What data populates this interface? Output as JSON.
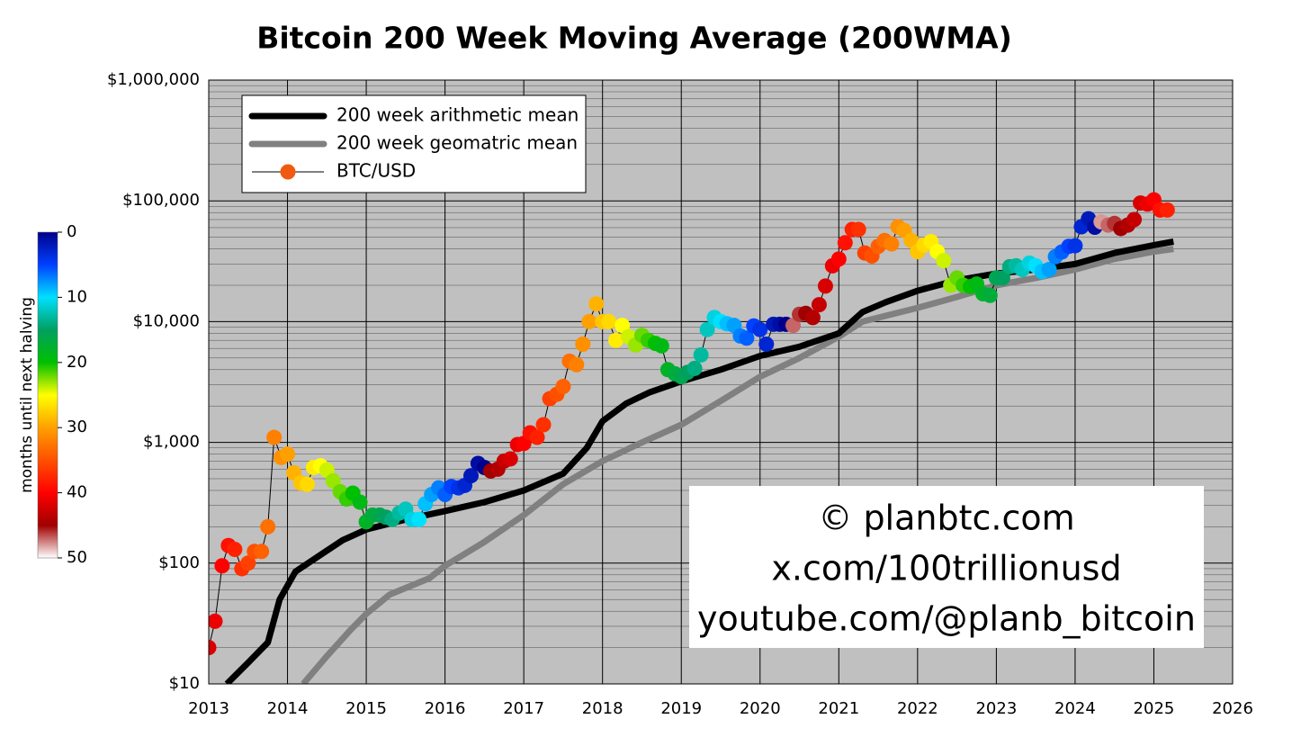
{
  "chart_data": {
    "type": "line",
    "title": "Bitcoin 200 Week Moving Average (200WMA)",
    "log_y": true,
    "grid": true,
    "legend": "upper left",
    "xlim": [
      2013,
      2026
    ],
    "xticks": [
      2013,
      2014,
      2015,
      2016,
      2017,
      2018,
      2019,
      2020,
      2021,
      2022,
      2023,
      2024,
      2025,
      2026
    ],
    "ylim": [
      10,
      1000000
    ],
    "yticks": [
      {
        "value": 10,
        "label": "$10"
      },
      {
        "value": 100,
        "label": "$100"
      },
      {
        "value": 1000,
        "label": "$1,000"
      },
      {
        "value": 10000,
        "label": "$10,000"
      },
      {
        "value": 100000,
        "label": "$100,000"
      },
      {
        "value": 1000000,
        "label": "$1,000,000"
      }
    ],
    "series": [
      {
        "name": "200 week arithmetic mean",
        "color": "#000000",
        "x": [
          2013.23,
          2013.5,
          2013.75,
          2013.9,
          2014.1,
          2014.4,
          2014.7,
          2015.0,
          2015.5,
          2016.0,
          2016.5,
          2017.0,
          2017.5,
          2017.8,
          2018.0,
          2018.3,
          2018.6,
          2019.0,
          2019.5,
          2020.0,
          2020.5,
          2021.0,
          2021.3,
          2021.6,
          2022.0,
          2022.5,
          2023.0,
          2023.5,
          2024.0,
          2024.5,
          2025.0,
          2025.25
        ],
        "values": [
          10,
          15,
          22,
          50,
          85,
          115,
          155,
          190,
          230,
          270,
          320,
          400,
          550,
          900,
          1500,
          2100,
          2600,
          3200,
          4000,
          5200,
          6200,
          8000,
          12000,
          14500,
          18000,
          22000,
          25000,
          27000,
          30000,
          37000,
          43000,
          46000
        ]
      },
      {
        "name": "200 week geomatric mean",
        "color": "#808080",
        "x": [
          2014.2,
          2014.5,
          2014.8,
          2015.0,
          2015.3,
          2015.8,
          2016.0,
          2016.5,
          2017.0,
          2017.5,
          2018.0,
          2018.5,
          2019.0,
          2019.5,
          2020.0,
          2020.5,
          2021.0,
          2021.3,
          2022.0,
          2022.5,
          2023.0,
          2023.5,
          2024.0,
          2024.5,
          2025.0,
          2025.25
        ],
        "values": [
          10,
          17,
          28,
          38,
          55,
          75,
          95,
          150,
          250,
          450,
          700,
          1000,
          1400,
          2200,
          3500,
          5000,
          7500,
          10000,
          13000,
          16000,
          20000,
          23000,
          27000,
          33000,
          38000,
          40000
        ]
      },
      {
        "name": "BTC/USD",
        "color": "#f05a10",
        "line_color": "#000000",
        "x": [
          2013.0,
          2013.08,
          2013.17,
          2013.25,
          2013.33,
          2013.42,
          2013.5,
          2013.58,
          2013.67,
          2013.75,
          2013.83,
          2013.92,
          2014.0,
          2014.08,
          2014.17,
          2014.25,
          2014.33,
          2014.42,
          2014.5,
          2014.58,
          2014.67,
          2014.75,
          2014.83,
          2014.92,
          2015.0,
          2015.08,
          2015.17,
          2015.25,
          2015.33,
          2015.42,
          2015.5,
          2015.58,
          2015.67,
          2015.75,
          2015.83,
          2015.92,
          2016.0,
          2016.08,
          2016.17,
          2016.25,
          2016.33,
          2016.42,
          2016.5,
          2016.58,
          2016.67,
          2016.75,
          2016.83,
          2016.92,
          2017.0,
          2017.08,
          2017.17,
          2017.25,
          2017.33,
          2017.42,
          2017.5,
          2017.58,
          2017.67,
          2017.75,
          2017.83,
          2017.92,
          2018.0,
          2018.08,
          2018.17,
          2018.25,
          2018.33,
          2018.42,
          2018.5,
          2018.58,
          2018.67,
          2018.75,
          2018.83,
          2018.92,
          2019.0,
          2019.08,
          2019.17,
          2019.25,
          2019.33,
          2019.42,
          2019.5,
          2019.58,
          2019.67,
          2019.75,
          2019.83,
          2019.92,
          2020.0,
          2020.08,
          2020.17,
          2020.25,
          2020.33,
          2020.42,
          2020.5,
          2020.58,
          2020.67,
          2020.75,
          2020.83,
          2020.92,
          2021.0,
          2021.08,
          2021.17,
          2021.25,
          2021.33,
          2021.42,
          2021.5,
          2021.58,
          2021.67,
          2021.75,
          2021.83,
          2021.92,
          2022.0,
          2022.08,
          2022.17,
          2022.25,
          2022.33,
          2022.42,
          2022.5,
          2022.58,
          2022.67,
          2022.75,
          2022.83,
          2022.92,
          2023.0,
          2023.08,
          2023.17,
          2023.25,
          2023.33,
          2023.42,
          2023.5,
          2023.58,
          2023.67,
          2023.75,
          2023.83,
          2023.92,
          2024.0,
          2024.08,
          2024.17,
          2024.25,
          2024.33,
          2024.42,
          2024.5,
          2024.58,
          2024.67,
          2024.75,
          2024.83,
          2024.92,
          2025.0,
          2025.08,
          2025.17
        ],
        "values": [
          20,
          33,
          95,
          140,
          130,
          90,
          100,
          125,
          125,
          200,
          1100,
          750,
          800,
          560,
          460,
          450,
          620,
          640,
          590,
          480,
          390,
          340,
          380,
          320,
          220,
          250,
          250,
          240,
          230,
          260,
          280,
          230,
          230,
          310,
          370,
          420,
          370,
          430,
          420,
          440,
          530,
          670,
          620,
          580,
          600,
          700,
          730,
          960,
          980,
          1200,
          1100,
          1400,
          2300,
          2500,
          2900,
          4700,
          4400,
          6500,
          10000,
          14000,
          10000,
          10000,
          7000,
          9300,
          7500,
          6400,
          7700,
          7000,
          6600,
          6300,
          4000,
          3700,
          3500,
          3800,
          4100,
          5300,
          8600,
          10800,
          10000,
          9600,
          9300,
          7600,
          7300,
          9200,
          8600,
          6500,
          9500,
          9500,
          9500,
          9300,
          11500,
          11700,
          10800,
          13800,
          19700,
          29000,
          33000,
          45000,
          58000,
          58000,
          37000,
          35000,
          42000,
          47000,
          44000,
          61000,
          57000,
          47000,
          38000,
          43000,
          46000,
          38000,
          32000,
          20000,
          23000,
          20000,
          19500,
          20500,
          17000,
          16500,
          23000,
          23000,
          28500,
          29000,
          27000,
          30500,
          29000,
          26000,
          27000,
          34500,
          37700,
          42000,
          42500,
          61000,
          71000,
          60500,
          67000,
          63000,
          65000,
          59000,
          63000,
          70000,
          96000,
          94000,
          102000,
          84000,
          84000
        ],
        "months": [
          42,
          41,
          40,
          39,
          38,
          37,
          36,
          35,
          34,
          33,
          32,
          31,
          30,
          29,
          28,
          27,
          26,
          25,
          24,
          23,
          22,
          21,
          20,
          19,
          18,
          17,
          16,
          15,
          14,
          13,
          12,
          11,
          10,
          9,
          8,
          7,
          6,
          5,
          4,
          3,
          2,
          1,
          0,
          45,
          44,
          43,
          42,
          41,
          40,
          39,
          38,
          37,
          36,
          35,
          34,
          33,
          32,
          31,
          30,
          29,
          28,
          27,
          26,
          25,
          24,
          23,
          22,
          21,
          20,
          19,
          18,
          17,
          16,
          15,
          14,
          13,
          12,
          11,
          10,
          9,
          8,
          7,
          6,
          5,
          4,
          3,
          2,
          1,
          0,
          47,
          46,
          45,
          44,
          43,
          42,
          41,
          40,
          39,
          38,
          37,
          36,
          35,
          34,
          33,
          32,
          31,
          30,
          29,
          28,
          27,
          26,
          25,
          24,
          23,
          22,
          21,
          20,
          19,
          18,
          17,
          16,
          15,
          14,
          13,
          12,
          11,
          10,
          9,
          8,
          7,
          6,
          5,
          4,
          3,
          2,
          1,
          48,
          47,
          46,
          45,
          44,
          43,
          42,
          41,
          40,
          39,
          38
        ]
      }
    ],
    "colorbar": {
      "label": "months until next halving",
      "lim": [
        0,
        50
      ],
      "ticks": [
        0,
        10,
        20,
        30,
        40,
        50
      ],
      "colors": [
        "#00008b",
        "#0040ff",
        "#00e0ff",
        "#00a060",
        "#00c000",
        "#ffff00",
        "#ffa000",
        "#ff5000",
        "#ff0000",
        "#a00000",
        "#ffffff"
      ]
    },
    "annotations": [
      "© planbtc.com",
      "x.com/100trillionusd",
      "youtube.com/@planb_bitcoin"
    ]
  }
}
